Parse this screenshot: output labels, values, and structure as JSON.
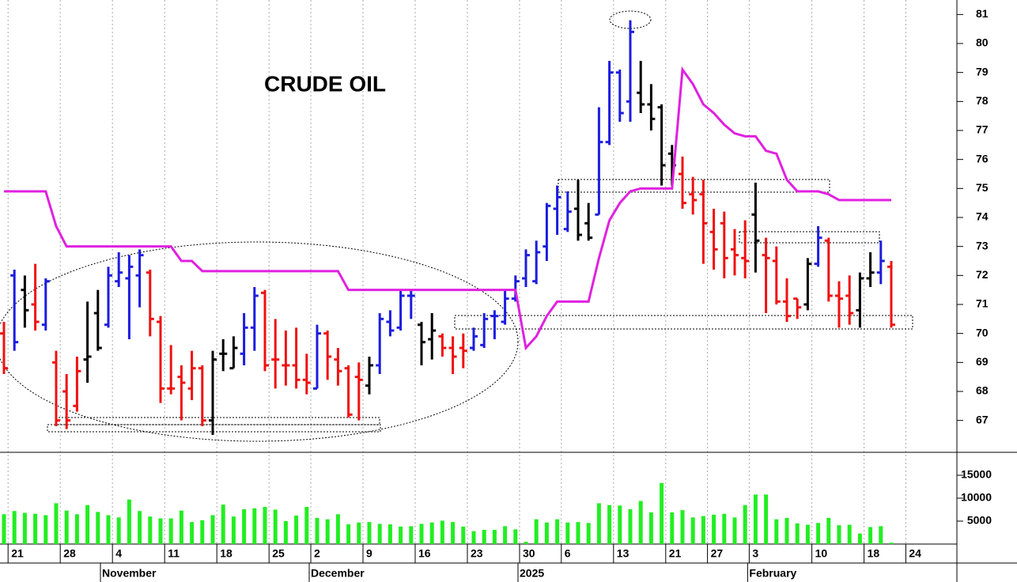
{
  "chart_data": [
    {
      "type": "ohlc",
      "title": "CRUDE OIL",
      "categories": [
        null,
        "21",
        null,
        null,
        null,
        null,
        "28",
        null,
        null,
        null,
        null,
        "4",
        null,
        null,
        null,
        null,
        "11",
        null,
        null,
        null,
        null,
        "18",
        null,
        null,
        null,
        null,
        "25",
        null,
        null,
        null,
        "2",
        null,
        null,
        null,
        null,
        "9",
        null,
        null,
        null,
        null,
        "16",
        null,
        null,
        null,
        null,
        "23",
        null,
        null,
        null,
        null,
        "30",
        null,
        null,
        null,
        "6",
        null,
        null,
        null,
        null,
        "13",
        null,
        null,
        null,
        null,
        "21",
        null,
        null,
        null,
        "27",
        null,
        null,
        null,
        "3",
        null,
        null,
        null,
        null,
        null,
        "10",
        null,
        null,
        null,
        null,
        "18",
        null,
        null,
        null,
        "24"
      ],
      "months": [
        null,
        null,
        null,
        null,
        null,
        null,
        null,
        null,
        null,
        null,
        "November",
        null,
        null,
        null,
        null,
        null,
        null,
        null,
        null,
        null,
        null,
        null,
        null,
        null,
        null,
        null,
        null,
        null,
        null,
        null,
        "December",
        null,
        null,
        null,
        null,
        null,
        null,
        null,
        null,
        null,
        null,
        null,
        null,
        null,
        null,
        null,
        null,
        null,
        null,
        null,
        "2025",
        null,
        null,
        null,
        null,
        null,
        null,
        null,
        null,
        null,
        null,
        null,
        null,
        null,
        null,
        null,
        null,
        null,
        null,
        null,
        null,
        null,
        "February",
        null,
        null,
        null,
        null,
        null,
        null,
        null,
        null,
        null,
        null,
        null,
        null,
        null,
        null,
        null
      ],
      "open": [
        70,
        72,
        71.5,
        71,
        70.3,
        69,
        68,
        67.5,
        69.1,
        70.7,
        70.3,
        71.8,
        71.9,
        72,
        72.1,
        70.4,
        68.1,
        68.5,
        68.1,
        68.8,
        67,
        69.3,
        68.8,
        69.3,
        70.2,
        71.4,
        69.1,
        68.9,
        68.9,
        68.4,
        68.1,
        70,
        69.1,
        68.8,
        68.5,
        68.2,
        68.9,
        70.4,
        70.2,
        71.3,
        70.3,
        69.8,
        69.9,
        69.5,
        69.5,
        69.5,
        69.6,
        70.6,
        70.4,
        71.2,
        71.9,
        71.8,
        73,
        74.3,
        73.6,
        74.3,
        73.8,
        74.1,
        76.6,
        79,
        78,
        78.3,
        77.9,
        77.8,
        76.2,
        75.5,
        74.8,
        74.8,
        73.5,
        73.8,
        72.9,
        72.6,
        74.1,
        72.7,
        72.5,
        71.1,
        71.2,
        71,
        72.4,
        73.2,
        71.3,
        71.3,
        70.8,
        71.9,
        72.1,
        72.3,
        null,
        null
      ],
      "high": [
        70.4,
        72.2,
        72,
        72.4,
        71.9,
        69.4,
        68.6,
        69.2,
        71.1,
        71.5,
        72.3,
        72.8,
        72.7,
        72.9,
        72.2,
        70.6,
        69.6,
        68.9,
        69.4,
        68.9,
        69.4,
        69.8,
        69.9,
        70.7,
        71.6,
        71.5,
        70.5,
        70.1,
        70.2,
        69.3,
        70.3,
        70.1,
        69.5,
        68.9,
        69,
        69.2,
        70.7,
        70.8,
        71.5,
        71.5,
        70.4,
        70.7,
        70,
        69.9,
        70,
        70.2,
        70.7,
        70.8,
        71.5,
        72,
        72.9,
        73.2,
        74.5,
        75.1,
        74.9,
        75.3,
        74.5,
        77.8,
        79.4,
        79.1,
        80.8,
        79.4,
        78.6,
        77.9,
        76.5,
        76.1,
        75.4,
        75.3,
        74.3,
        74.2,
        73.6,
        73.9,
        75.2,
        73.3,
        73,
        71.9,
        71.2,
        72.6,
        73.7,
        73.3,
        71.8,
        72,
        72.1,
        72.8,
        73.2,
        72.5,
        null,
        null
      ],
      "low": [
        68.6,
        69.4,
        70.2,
        70.1,
        70.1,
        66.8,
        66.7,
        67.3,
        68.3,
        69.4,
        70.2,
        71.6,
        69.8,
        70.9,
        69.9,
        67.6,
        67.9,
        67,
        67.7,
        66.8,
        66.5,
        68.7,
        68.8,
        68.9,
        69.4,
        68.7,
        68.1,
        68.2,
        68.1,
        67.9,
        68.1,
        68.4,
        68.2,
        67.1,
        67,
        67.9,
        68.6,
        69.9,
        70.1,
        70.5,
        68.9,
        69.1,
        69.2,
        68.6,
        68.8,
        69.4,
        69.5,
        69.8,
        70.3,
        71.1,
        71.6,
        71.7,
        72.5,
        73.4,
        73.5,
        73.2,
        73.2,
        74.1,
        76.5,
        77.3,
        77.3,
        77.6,
        77,
        75.1,
        75.1,
        74.3,
        74.1,
        72.4,
        72.2,
        71.9,
        72,
        71.9,
        72.1,
        70.7,
        71,
        70.4,
        70.5,
        70.8,
        72.3,
        71.1,
        70.2,
        70.3,
        70.2,
        71.6,
        71.7,
        70.2,
        null,
        null
      ],
      "close": [
        68.8,
        69.7,
        70.8,
        70.4,
        71.8,
        67,
        67,
        68.7,
        69.2,
        69.5,
        72,
        72.1,
        72.3,
        72.7,
        70.5,
        68.1,
        68.1,
        68.3,
        68.8,
        67,
        69.1,
        69.3,
        69.5,
        70.2,
        71.3,
        68.9,
        69.1,
        68.9,
        68.4,
        68.3,
        70,
        69.2,
        68.7,
        67.2,
        68.4,
        68.9,
        70.5,
        70.1,
        71.3,
        71.3,
        69.7,
        70.1,
        69.5,
        69.2,
        69.4,
        69.9,
        70.5,
        70.6,
        71.2,
        71.8,
        72.7,
        72.8,
        74.4,
        74.7,
        74.2,
        73.4,
        73.3,
        76.6,
        79,
        77.6,
        80.4,
        77.9,
        77.4,
        75.8,
        75.8,
        74.5,
        74.6,
        73.8,
        72.9,
        72.6,
        72.7,
        72.5,
        73.2,
        72.6,
        71.1,
        70.6,
        70.9,
        72.4,
        73.3,
        71.3,
        71.2,
        70.7,
        71.9,
        72.1,
        72.5,
        70.3,
        null,
        null
      ],
      "colors": [
        "#f01010",
        "#1c1ce0",
        "#000000",
        "#f01010",
        "#1c1ce0",
        "#f01010",
        "#f01010",
        "#f01010",
        "#000000",
        "#000000",
        "#1c1ce0",
        "#1c1ce0",
        "#1c1ce0",
        "#1c1ce0",
        "#f01010",
        "#f01010",
        "#f01010",
        "#f01010",
        "#f01010",
        "#f01010",
        "#000000",
        "#000000",
        "#000000",
        "#1c1ce0",
        "#1c1ce0",
        "#f01010",
        "#f01010",
        "#f01010",
        "#f01010",
        "#f01010",
        "#1c1ce0",
        "#f01010",
        "#f01010",
        "#f01010",
        "#f01010",
        "#000000",
        "#1c1ce0",
        "#1c1ce0",
        "#1c1ce0",
        "#1c1ce0",
        "#000000",
        "#000000",
        "#f01010",
        "#f01010",
        "#f01010",
        "#1c1ce0",
        "#1c1ce0",
        "#1c1ce0",
        "#1c1ce0",
        "#1c1ce0",
        "#1c1ce0",
        "#1c1ce0",
        "#1c1ce0",
        "#1c1ce0",
        "#1c1ce0",
        "#000000",
        "#000000",
        "#1c1ce0",
        "#1c1ce0",
        "#1c1ce0",
        "#1c1ce0",
        "#000000",
        "#000000",
        "#000000",
        "#000000",
        "#f01010",
        "#f01010",
        "#f01010",
        "#f01010",
        "#f01010",
        "#f01010",
        "#f01010",
        "#000000",
        "#f01010",
        "#f01010",
        "#f01010",
        "#f01010",
        "#000000",
        "#1c1ce0",
        "#f01010",
        "#f01010",
        "#f01010",
        "#000000",
        "#000000",
        "#1c1ce0",
        "#f01010",
        null,
        null
      ],
      "line": {
        "color": "#e020e0",
        "values": [
          74.9,
          74.9,
          74.9,
          74.9,
          74.9,
          73.7,
          73,
          73,
          73,
          73,
          73,
          73,
          73,
          73,
          73,
          73,
          73,
          72.5,
          72.5,
          72.15,
          72.15,
          72.15,
          72.15,
          72.15,
          72.15,
          72.15,
          72.15,
          72.15,
          72.15,
          72.15,
          72.15,
          72.15,
          72.15,
          71.5,
          71.5,
          71.5,
          71.5,
          71.5,
          71.5,
          71.5,
          71.5,
          71.5,
          71.5,
          71.5,
          71.5,
          71.5,
          71.5,
          71.5,
          71.5,
          71.5,
          69.5,
          69.9,
          70.6,
          71.1,
          71.1,
          71.1,
          71.1,
          72.6,
          73.9,
          74.5,
          74.9,
          75,
          75,
          75,
          75,
          79.1,
          78.6,
          77.9,
          77.6,
          77.2,
          76.9,
          76.8,
          76.8,
          76.3,
          76.2,
          75.3,
          74.9,
          74.9,
          74.9,
          74.8,
          74.6,
          74.6,
          74.6,
          74.6,
          74.6,
          74.6,
          null,
          null
        ]
      },
      "ylim": [
        65.9,
        81.5
      ],
      "yticks": [
        67,
        68,
        69,
        70,
        71,
        72,
        73,
        74,
        75,
        76,
        77,
        78,
        79,
        80,
        81
      ],
      "grid": true
    },
    {
      "type": "bar",
      "color": "#22ee22",
      "values": [
        6500,
        7200,
        6800,
        6600,
        6300,
        8900,
        7300,
        6500,
        8500,
        7000,
        6300,
        5800,
        9700,
        7200,
        6000,
        5600,
        5600,
        7300,
        4800,
        5200,
        6300,
        8600,
        6000,
        7600,
        7800,
        8100,
        7500,
        5000,
        6200,
        8100,
        5700,
        5400,
        6500,
        4300,
        4700,
        4800,
        4400,
        4300,
        3800,
        3900,
        4400,
        4700,
        5100,
        4800,
        3800,
        2800,
        3100,
        3100,
        3900,
        3200,
        500,
        5400,
        4700,
        5400,
        4700,
        4800,
        4600,
        8900,
        8500,
        8400,
        7600,
        9400,
        6900,
        13300,
        6900,
        7400,
        5800,
        6100,
        6400,
        6600,
        5800,
        8500,
        10800,
        10800,
        5400,
        5700,
        4500,
        4200,
        4600,
        5700,
        4100,
        4200,
        2300,
        3700,
        3900,
        300,
        null,
        null
      ],
      "ylim": [
        0,
        20000
      ],
      "yticks": [
        5000,
        10000,
        15000
      ]
    }
  ]
}
